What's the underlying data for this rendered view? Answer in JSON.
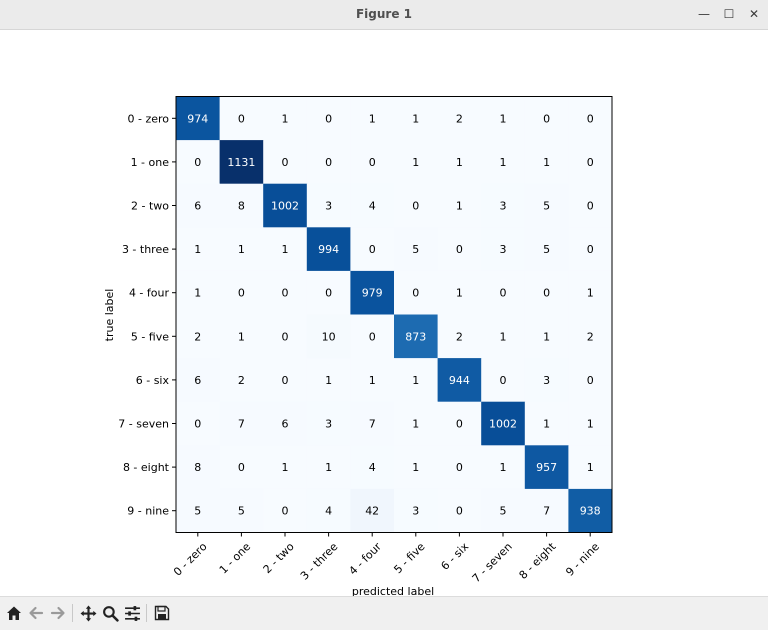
{
  "window": {
    "title": "Figure 1",
    "minimize_glyph": "—",
    "maximize_glyph": "☐",
    "close_glyph": "✕"
  },
  "toolbar": {
    "icons": [
      "home-icon",
      "back-arrow-icon",
      "forward-arrow-icon",
      "pan-icon",
      "zoom-icon",
      "configure-subplots-icon",
      "save-icon"
    ]
  },
  "chart_data": {
    "type": "heatmap",
    "colormap": "Blues",
    "xlabel": "predicted label",
    "ylabel": "true label",
    "x_categories": [
      "0 - zero",
      "1 - one",
      "2 - two",
      "3 - three",
      "4 - four",
      "5 - five",
      "6 - six",
      "7 - seven",
      "8 - eight",
      "9 - nine"
    ],
    "y_categories": [
      "0 - zero",
      "1 - one",
      "2 - two",
      "3 - three",
      "4 - four",
      "5 - five",
      "6 - six",
      "7 - seven",
      "8 - eight",
      "9 - nine"
    ],
    "matrix": [
      [
        974,
        0,
        1,
        0,
        1,
        1,
        2,
        1,
        0,
        0
      ],
      [
        0,
        1131,
        0,
        0,
        0,
        1,
        1,
        1,
        1,
        0
      ],
      [
        6,
        8,
        1002,
        3,
        4,
        0,
        1,
        3,
        5,
        0
      ],
      [
        1,
        1,
        1,
        994,
        0,
        5,
        0,
        3,
        5,
        0
      ],
      [
        1,
        0,
        0,
        0,
        979,
        0,
        1,
        0,
        0,
        1
      ],
      [
        2,
        1,
        0,
        10,
        0,
        873,
        2,
        1,
        1,
        2
      ],
      [
        6,
        2,
        0,
        1,
        1,
        1,
        944,
        0,
        3,
        0
      ],
      [
        0,
        7,
        6,
        3,
        7,
        1,
        0,
        1002,
        1,
        1
      ],
      [
        8,
        0,
        1,
        1,
        4,
        1,
        0,
        1,
        957,
        1
      ],
      [
        5,
        5,
        0,
        4,
        42,
        3,
        0,
        5,
        7,
        938
      ]
    ],
    "x_tick_rotation_deg": 45,
    "grid": false
  }
}
